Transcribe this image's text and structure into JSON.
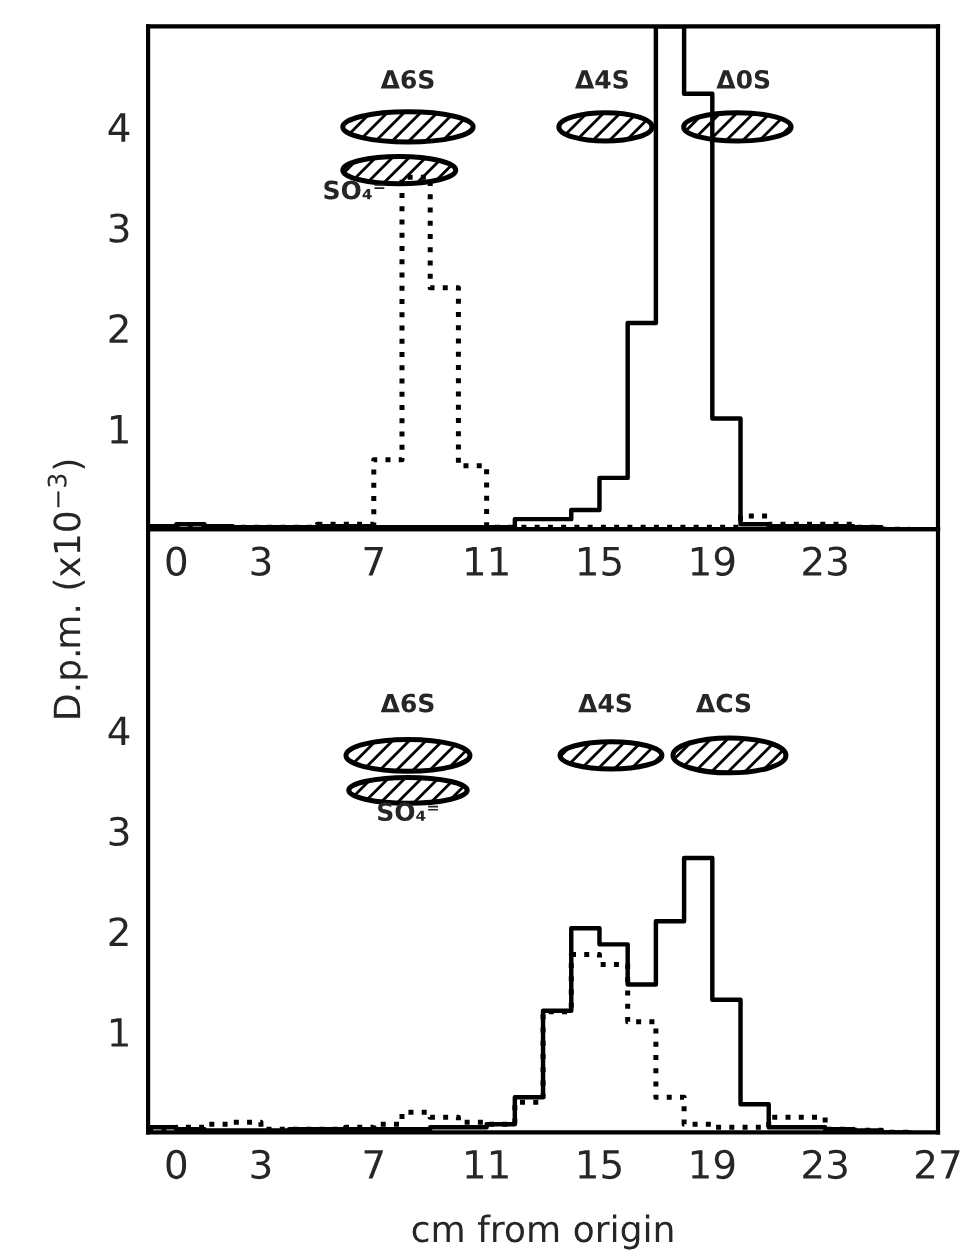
{
  "chart_data": [
    {
      "type": "step",
      "ylabel": "D.p.m. (x10$^{−3}$)",
      "x": [
        -1,
        0,
        1,
        2,
        3,
        4,
        5,
        6,
        7,
        8,
        9,
        10,
        11,
        12,
        13,
        14,
        15,
        16,
        17,
        18,
        19,
        20,
        21,
        22,
        23,
        24,
        25,
        26
      ],
      "series": [
        {
          "color": "#000000",
          "line_style": "solid",
          "values": [
            0.03,
            0.05,
            0.03,
            0.02,
            0.02,
            0.02,
            0.03,
            0.03,
            0.02,
            0.02,
            0.02,
            0.02,
            0.02,
            0.1,
            0.1,
            0.19,
            0.51,
            2.05,
            5,
            4.33,
            1.1,
            0.05,
            0.03,
            0.03,
            0.03,
            0.02,
            0,
            0
          ]
        },
        {
          "color": "#000000",
          "line_style": "dotted",
          "values": [
            0.02,
            0.02,
            0.02,
            0.02,
            0.02,
            0.02,
            0.05,
            0.05,
            0.69,
            3.5,
            2.4,
            0.63,
            0.02,
            0.02,
            0.02,
            0.02,
            0.02,
            0.02,
            0.02,
            0.02,
            0.02,
            0.13,
            0.05,
            0.05,
            0.05,
            0.02,
            0,
            0
          ]
        }
      ],
      "xlim": [
        -1,
        27
      ],
      "xticks": [
        0,
        3,
        7,
        11,
        15,
        19,
        23
      ],
      "ylim": [
        0,
        5
      ],
      "yticks": [
        1,
        2,
        3,
        4
      ],
      "annotations": [
        "Δ6S",
        "SO₄⁼",
        "Δ4S",
        "Δ0S"
      ]
    },
    {
      "type": "step",
      "xlabel": "cm from origin",
      "x": [
        -1,
        0,
        1,
        2,
        3,
        4,
        5,
        6,
        7,
        8,
        9,
        10,
        11,
        12,
        13,
        14,
        15,
        16,
        17,
        18,
        19,
        20,
        21,
        22,
        23,
        24,
        25,
        26
      ],
      "series": [
        {
          "color": "#000000",
          "line_style": "solid",
          "values": [
            0.05,
            0.03,
            0.02,
            0.02,
            0.02,
            0.03,
            0.03,
            0.03,
            0.03,
            0.03,
            0.05,
            0.05,
            0.08,
            0.35,
            1.21,
            2.03,
            1.87,
            1.47,
            2.1,
            2.73,
            1.32,
            0.28,
            0.05,
            0.05,
            0.03,
            0.02,
            0,
            0
          ]
        },
        {
          "color": "#000000",
          "line_style": "dotted",
          "values": [
            0.03,
            0.05,
            0.08,
            0.1,
            0.03,
            0.03,
            0.03,
            0.05,
            0.08,
            0.2,
            0.15,
            0.1,
            0.08,
            0.3,
            1.2,
            1.77,
            1.67,
            1.1,
            0.35,
            0.08,
            0.05,
            0.05,
            0.15,
            0.15,
            0.03,
            0.02,
            0,
            0
          ]
        }
      ],
      "xlim": [
        -1,
        27
      ],
      "xticks": [
        0,
        3,
        7,
        11,
        15,
        19,
        23,
        27
      ],
      "ylim": [
        0,
        6
      ],
      "yticks": [
        1,
        2,
        3,
        4
      ],
      "annotations": [
        "Δ6S",
        "SO₄⁼",
        "Δ4S",
        "ΔCS"
      ]
    }
  ]
}
